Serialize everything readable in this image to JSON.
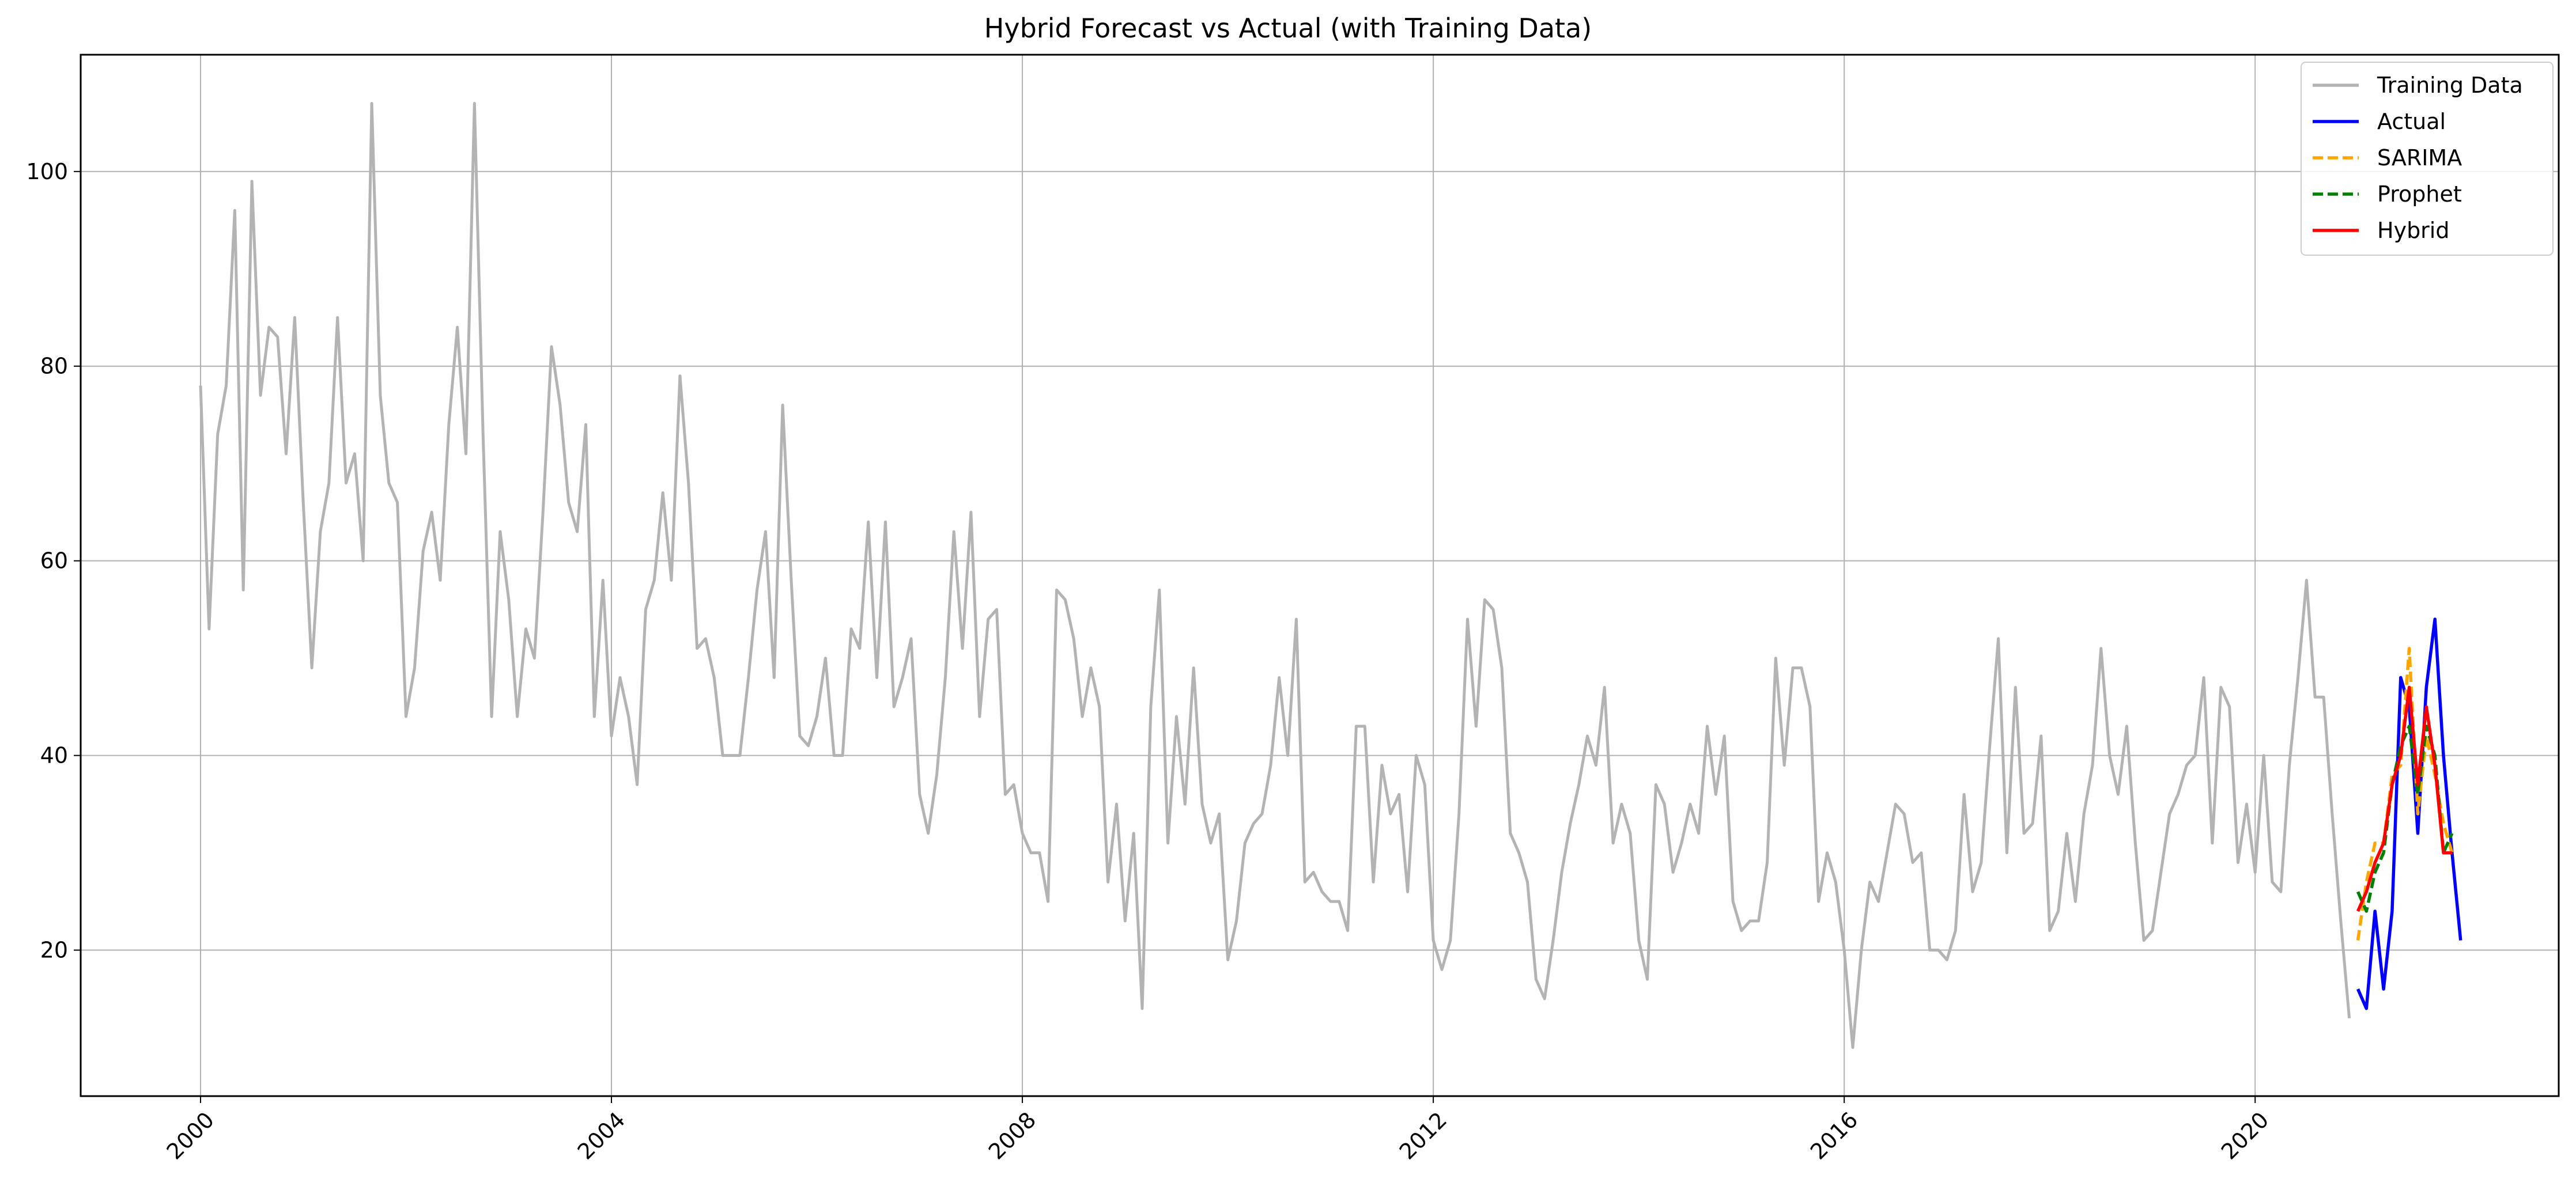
{
  "chart_data": {
    "type": "line",
    "title": "Hybrid Forecast vs Actual (with Training Data)",
    "xlabel": "",
    "ylabel": "",
    "x_axis": {
      "type": "date",
      "range": [
        "1998-11-01",
        "2022-12-15"
      ],
      "ticks": [
        {
          "value": "2000-01-01",
          "label": "2000"
        },
        {
          "value": "2004-01-01",
          "label": "2004"
        },
        {
          "value": "2008-01-01",
          "label": "2008"
        },
        {
          "value": "2012-01-01",
          "label": "2012"
        },
        {
          "value": "2016-01-01",
          "label": "2016"
        },
        {
          "value": "2020-01-01",
          "label": "2020"
        }
      ],
      "tick_label_rotation": "45deg"
    },
    "ylim": [
      5,
      112
    ],
    "y_ticks": [
      20,
      40,
      60,
      80,
      100
    ],
    "grid": true,
    "legend": {
      "position": "top-right"
    },
    "series": [
      {
        "name": "Training Data",
        "color": "#b3b3b3",
        "style": "solid",
        "start": "2000-01",
        "values": [
          78,
          53,
          73,
          78,
          96,
          57,
          99,
          77,
          84,
          83,
          71,
          85,
          66,
          49,
          63,
          68,
          85,
          68,
          71,
          60,
          107,
          77,
          68,
          66,
          44,
          49,
          61,
          65,
          58,
          74,
          84,
          71,
          107,
          73,
          44,
          63,
          56,
          44,
          53,
          50,
          65,
          82,
          76,
          66,
          63,
          74,
          44,
          58,
          42,
          48,
          44,
          37,
          55,
          58,
          67,
          58,
          79,
          68,
          51,
          52,
          48,
          40,
          40,
          40,
          48,
          57,
          63,
          48,
          76,
          58,
          42,
          41,
          44,
          50,
          40,
          40,
          53,
          51,
          64,
          48,
          64,
          45,
          48,
          52,
          36,
          32,
          38,
          48,
          63,
          51,
          65,
          44,
          54,
          55,
          36,
          37,
          32,
          30,
          30,
          25,
          57,
          56,
          52,
          44,
          49,
          45,
          27,
          35,
          23,
          32,
          14,
          45,
          57,
          31,
          44,
          35,
          49,
          35,
          31,
          34,
          19,
          23,
          31,
          33,
          34,
          39,
          48,
          40,
          54,
          27,
          28,
          26,
          25,
          25,
          22,
          43,
          43,
          27,
          39,
          34,
          36,
          26,
          40,
          37,
          21,
          18,
          21,
          34,
          54,
          43,
          56,
          55,
          49,
          32,
          30,
          27,
          17,
          15,
          21,
          28,
          33,
          37,
          42,
          39,
          47,
          31,
          35,
          32,
          21,
          17,
          37,
          35,
          28,
          31,
          35,
          32,
          43,
          36,
          42,
          25,
          22,
          23,
          23,
          29,
          50,
          39,
          49,
          49,
          45,
          25,
          30,
          27,
          20,
          10,
          20,
          27,
          25,
          30,
          35,
          34,
          29,
          30,
          20,
          20,
          19,
          22,
          36,
          26,
          29,
          41,
          52,
          30,
          47,
          32,
          33,
          42,
          22,
          24,
          32,
          25,
          34,
          39,
          51,
          40,
          36,
          43,
          31,
          21,
          22,
          28,
          34,
          36,
          39,
          40,
          48,
          31,
          47,
          45,
          29,
          35,
          28,
          40,
          27,
          26,
          39,
          48,
          58,
          46,
          46,
          34,
          23,
          13
        ]
      },
      {
        "name": "Actual",
        "color": "#0000ff",
        "style": "solid",
        "start": "2021-01",
        "values": [
          16,
          14,
          24,
          16,
          24,
          48,
          45,
          32,
          47,
          54,
          40,
          30,
          21
        ]
      },
      {
        "name": "SARIMA",
        "color": "#ffa500",
        "style": "dashed",
        "start": "2021-01",
        "values": [
          21,
          27,
          31,
          31,
          38,
          39,
          51,
          34,
          42,
          38,
          33,
          30
        ]
      },
      {
        "name": "Prophet",
        "color": "#008000",
        "style": "dashed",
        "start": "2021-01",
        "values": [
          26,
          24,
          28,
          30,
          37,
          41,
          43,
          36,
          43,
          40,
          30,
          32
        ]
      },
      {
        "name": "Hybrid",
        "color": "#ff0000",
        "style": "solid",
        "start": "2021-01",
        "values": [
          24,
          26,
          29,
          31,
          37,
          40,
          47,
          37,
          45,
          39,
          30,
          30
        ]
      }
    ]
  }
}
